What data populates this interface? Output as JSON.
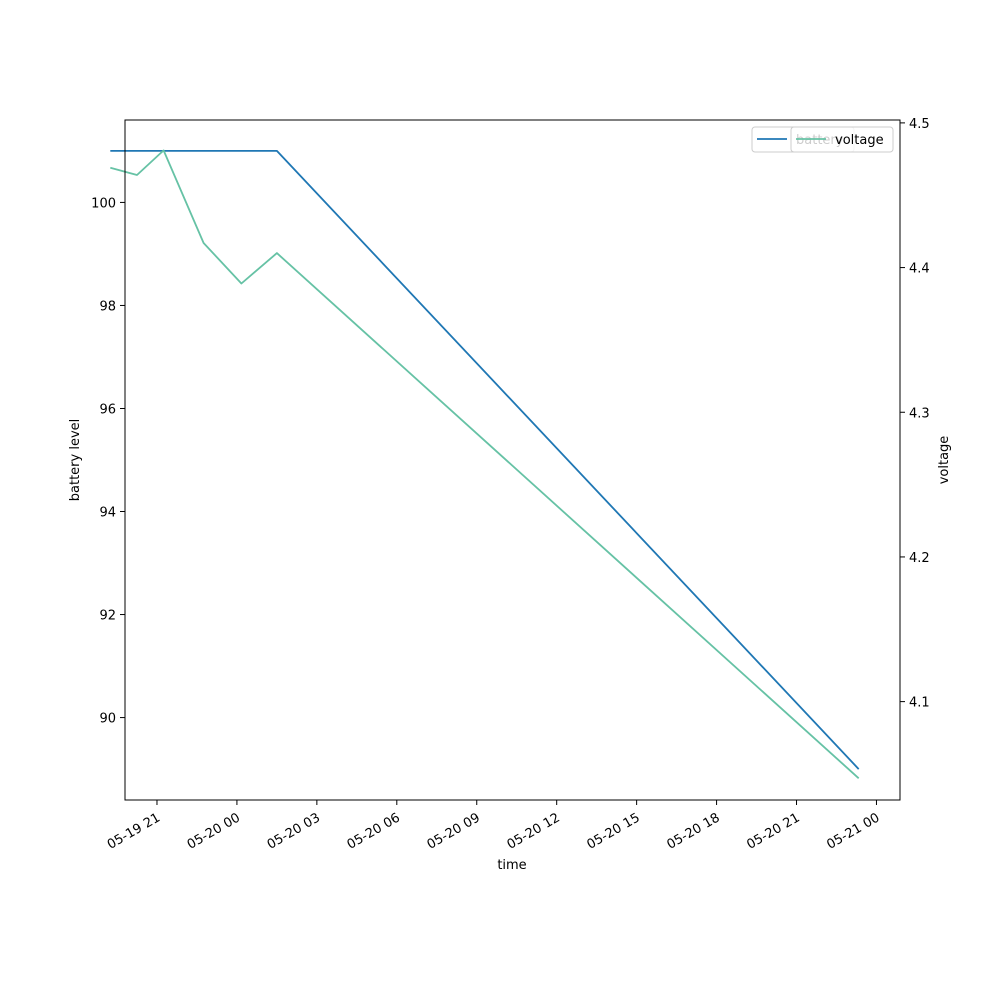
{
  "chart_data": {
    "type": "line",
    "title": "",
    "xlabel": "time",
    "ylabel": "battery level",
    "y2label": "voltage",
    "xlim": [
      "2025-05-19 19:48",
      "2025-05-21 00:53"
    ],
    "ylim": [
      88.4,
      101.6
    ],
    "y2lim": [
      4.032,
      4.502
    ],
    "x_ticks": [
      "05-19 21",
      "05-20 00",
      "05-20 03",
      "05-20 06",
      "05-20 09",
      "05-20 12",
      "05-20 15",
      "05-20 18",
      "05-20 21",
      "05-21 00"
    ],
    "x_tick_times": [
      "2025-05-19 21:00",
      "2025-05-20 00:00",
      "2025-05-20 03:00",
      "2025-05-20 06:00",
      "2025-05-20 09:00",
      "2025-05-20 12:00",
      "2025-05-20 15:00",
      "2025-05-20 18:00",
      "2025-05-20 21:00",
      "2025-05-21 00:00"
    ],
    "y_ticks": [
      90,
      92,
      94,
      96,
      98,
      100
    ],
    "y2_ticks": [
      "4.1",
      "4.2",
      "4.3",
      "4.4",
      "4.5"
    ],
    "grid": false,
    "legend_position": "top-right",
    "series": [
      {
        "name": "battery",
        "axis": "left",
        "color": "#1f77b4",
        "x": [
          "2025-05-19 19:15",
          "2025-05-20 01:30",
          "2025-05-20 23:20"
        ],
        "y": [
          101,
          101,
          89
        ]
      },
      {
        "name": "voltage",
        "axis": "right",
        "color": "#66c2a5",
        "x": [
          "2025-05-19 19:15",
          "2025-05-19 20:15",
          "2025-05-19 21:15",
          "2025-05-19 22:45",
          "2025-05-20 00:10",
          "2025-05-20 01:30",
          "2025-05-20 23:20"
        ],
        "y": [
          4.469,
          4.464,
          4.481,
          4.417,
          4.389,
          4.41,
          4.047
        ]
      }
    ]
  }
}
